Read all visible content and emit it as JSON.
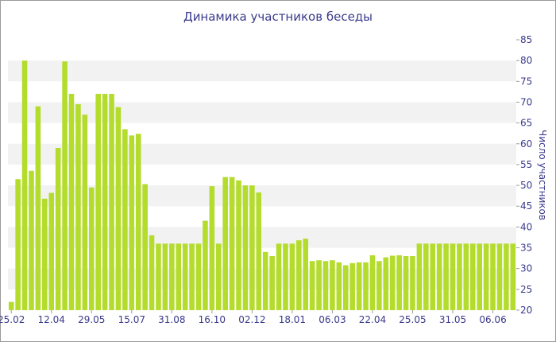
{
  "chart_data": {
    "type": "bar",
    "title": "Динамика участников беседы",
    "xlabel": "",
    "ylabel": "Число участников",
    "ylim": [
      20,
      85
    ],
    "yticks": [
      20,
      25,
      30,
      35,
      40,
      45,
      50,
      55,
      60,
      65,
      70,
      75,
      80,
      85
    ],
    "x_tick_labels": [
      "25.02",
      "12.04",
      "29.05",
      "15.07",
      "31.08",
      "16.10",
      "02.12",
      "18.01",
      "06.03",
      "22.04",
      "25.05",
      "31.05",
      "06.06"
    ],
    "x_tick_positions": [
      0,
      6,
      12,
      18,
      24,
      30,
      36,
      42,
      48,
      54,
      60,
      66,
      72
    ],
    "grid": "horizontal alternating bands",
    "bar_color": "#b4dc2c",
    "band_color": "#f2f2f2",
    "text_color": "#3a3a8c",
    "values": [
      22,
      51.5,
      80,
      53.5,
      69,
      46.8,
      48.2,
      59,
      79.8,
      72,
      69.5,
      67,
      49.5,
      72,
      72,
      72,
      68.8,
      63.5,
      62,
      62.4,
      50.3,
      38,
      36,
      36,
      36,
      36,
      36,
      36,
      36,
      41.5,
      49.8,
      36,
      52,
      52,
      51.2,
      50,
      50,
      48.3,
      34,
      33,
      36,
      36,
      36,
      36.8,
      37.2,
      31.8,
      32,
      31.8,
      32,
      31.5,
      30.8,
      31.3,
      31.5,
      31.5,
      33.2,
      31.8,
      32.7,
      33.1,
      33.2,
      33,
      33,
      36,
      36,
      36,
      36,
      36,
      36,
      36,
      36,
      36,
      36,
      36,
      36,
      36,
      36,
      36
    ]
  }
}
